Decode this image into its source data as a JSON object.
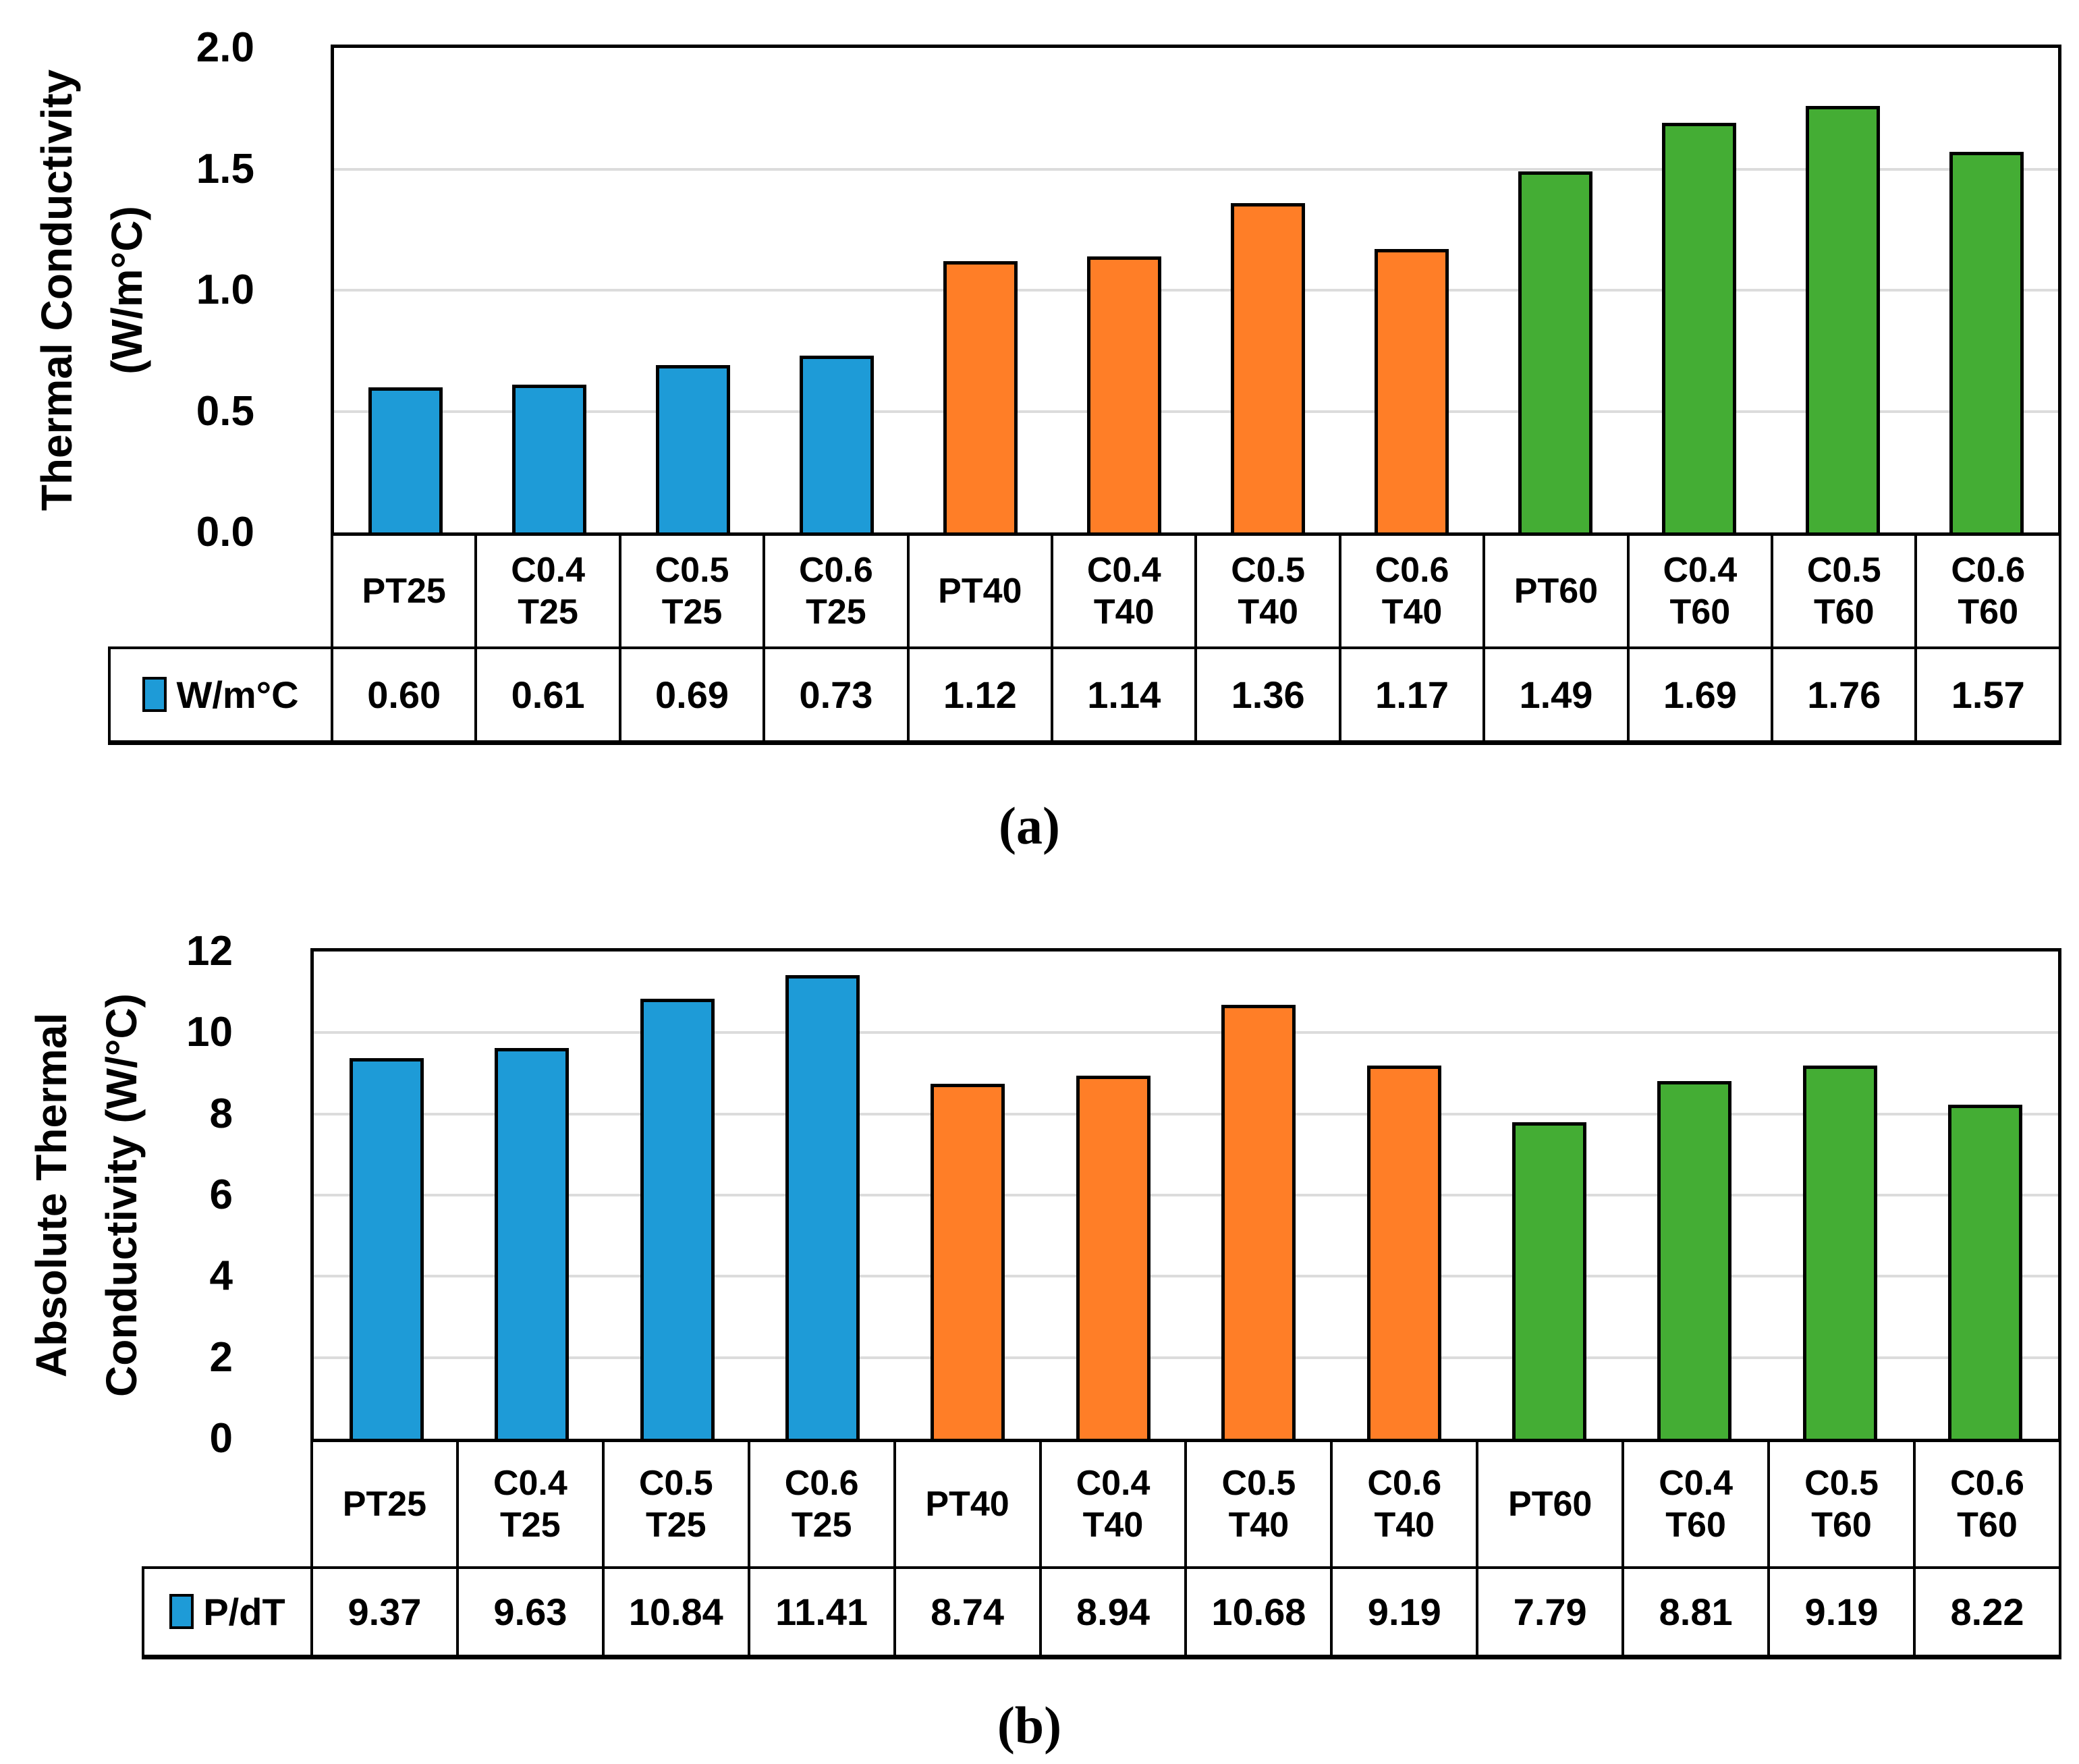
{
  "colors": {
    "blue": "#1E9BD7",
    "orange": "#FF7E27",
    "green": "#44AD34",
    "gridline": "#DCDCDC",
    "axis": "#000000"
  },
  "captions": {
    "a": "(a)",
    "b": "(b)"
  },
  "chart_data": [
    {
      "id": "a",
      "type": "bar",
      "caption": "(a)",
      "ylabel_line1": "Thermal Conductivity",
      "ylabel_line2": "(W/m°C)",
      "legend_label": "W/m°C",
      "legend_marker": "blue-square-icon",
      "legend_position": "table-left",
      "grid": true,
      "ylim": [
        0,
        2
      ],
      "yticks": [
        0,
        0.5,
        1,
        1.5,
        2
      ],
      "ytick_labels": [
        "0.0",
        "0.5",
        "1.0",
        "1.5",
        "2.0"
      ],
      "categories": [
        "PT25",
        "C0.4 T25",
        "C0.5 T25",
        "C0.6 T25",
        "PT40",
        "C0.4 T40",
        "C0.5 T40",
        "C0.6 T40",
        "PT60",
        "C0.4 T60",
        "C0.5 T60",
        "C0.6 T60"
      ],
      "category_label_lines": [
        [
          "PT25"
        ],
        [
          "C0.4",
          "T25"
        ],
        [
          "C0.5",
          "T25"
        ],
        [
          "C0.6",
          "T25"
        ],
        [
          "PT40"
        ],
        [
          "C0.4",
          "T40"
        ],
        [
          "C0.5",
          "T40"
        ],
        [
          "C0.6",
          "T40"
        ],
        [
          "PT60"
        ],
        [
          "C0.4",
          "T60"
        ],
        [
          "C0.5",
          "T60"
        ],
        [
          "C0.6",
          "T60"
        ]
      ],
      "series": [
        {
          "name": "W/m°C",
          "values": [
            0.6,
            0.61,
            0.69,
            0.73,
            1.12,
            1.14,
            1.36,
            1.17,
            1.49,
            1.69,
            1.76,
            1.57
          ]
        }
      ],
      "value_labels": [
        "0.60",
        "0.61",
        "0.69",
        "0.73",
        "1.12",
        "1.14",
        "1.36",
        "1.17",
        "1.49",
        "1.69",
        "1.76",
        "1.57"
      ],
      "bar_group_colors": [
        "blue",
        "blue",
        "blue",
        "blue",
        "orange",
        "orange",
        "orange",
        "orange",
        "green",
        "green",
        "green",
        "green"
      ]
    },
    {
      "id": "b",
      "type": "bar",
      "caption": "(b)",
      "ylabel_line1": "Absolute Thermal",
      "ylabel_line2": "Conductivity (W/°C)",
      "legend_label": "P/dT",
      "legend_marker": "blue-square-icon",
      "legend_position": "table-left",
      "grid": true,
      "ylim": [
        0,
        12
      ],
      "yticks": [
        0,
        2,
        4,
        6,
        8,
        10,
        12
      ],
      "ytick_labels": [
        "0",
        "2",
        "4",
        "6",
        "8",
        "10",
        "12"
      ],
      "categories": [
        "PT25",
        "C0.4 T25",
        "C0.5 T25",
        "C0.6 T25",
        "PT40",
        "C0.4 T40",
        "C0.5 T40",
        "C0.6 T40",
        "PT60",
        "C0.4 T60",
        "C0.5 T60",
        "C0.6 T60"
      ],
      "category_label_lines": [
        [
          "PT25"
        ],
        [
          "C0.4",
          "T25"
        ],
        [
          "C0.5",
          "T25"
        ],
        [
          "C0.6",
          "T25"
        ],
        [
          "PT40"
        ],
        [
          "C0.4",
          "T40"
        ],
        [
          "C0.5",
          "T40"
        ],
        [
          "C0.6",
          "T40"
        ],
        [
          "PT60"
        ],
        [
          "C0.4",
          "T60"
        ],
        [
          "C0.5",
          "T60"
        ],
        [
          "C0.6",
          "T60"
        ]
      ],
      "series": [
        {
          "name": "P/dT",
          "values": [
            9.37,
            9.63,
            10.84,
            11.41,
            8.74,
            8.94,
            10.68,
            9.19,
            7.79,
            8.81,
            9.19,
            8.22
          ]
        }
      ],
      "value_labels": [
        "9.37",
        "9.63",
        "10.84",
        "11.41",
        "8.74",
        "8.94",
        "10.68",
        "9.19",
        "7.79",
        "8.81",
        "9.19",
        "8.22"
      ],
      "bar_group_colors": [
        "blue",
        "blue",
        "blue",
        "blue",
        "orange",
        "orange",
        "orange",
        "orange",
        "green",
        "green",
        "green",
        "green"
      ]
    }
  ]
}
